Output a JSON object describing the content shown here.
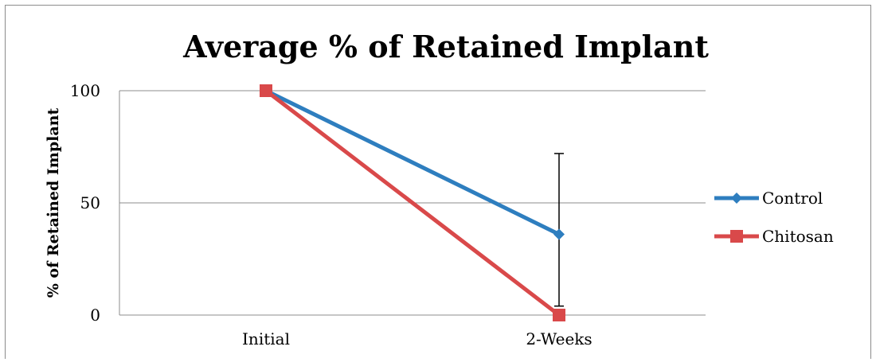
{
  "chart_data": {
    "type": "line",
    "title": "Average % of Retained Implant",
    "xlabel": "",
    "ylabel": "% of Retained Implant",
    "categories": [
      "Initial",
      "2-Weeks"
    ],
    "ylim": [
      0,
      100
    ],
    "yticks": [
      0,
      50,
      100
    ],
    "grid": true,
    "legend": "right",
    "series": [
      {
        "name": "Control",
        "values": [
          100,
          36
        ],
        "color": "#2e7ebf",
        "marker": "diamond",
        "error_bars": [
          null,
          [
            4,
            72
          ]
        ]
      },
      {
        "name": "Chitosan",
        "values": [
          100,
          0
        ],
        "color": "#d9494a",
        "marker": "square"
      }
    ]
  }
}
